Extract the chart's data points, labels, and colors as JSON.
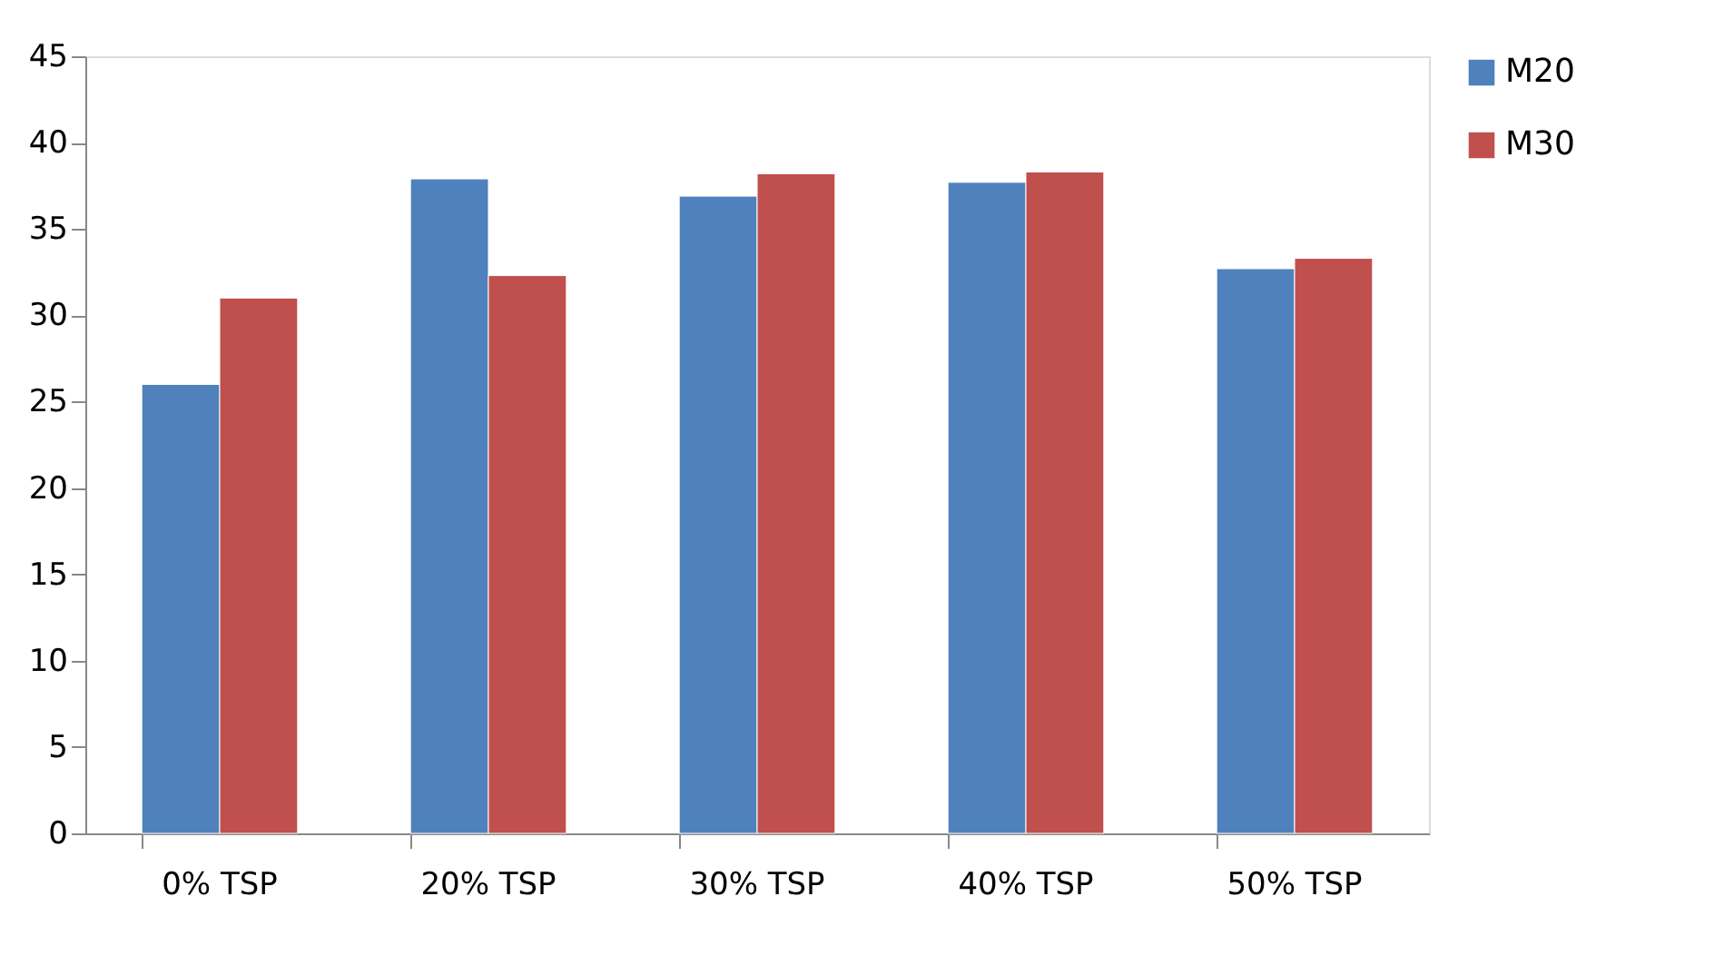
{
  "chart_data": {
    "type": "bar",
    "categories": [
      "0% TSP",
      "20% TSP",
      "30% TSP",
      "40% TSP",
      "50% TSP"
    ],
    "series": [
      {
        "name": "M20",
        "color": "#4f81bd",
        "values": [
          26,
          37.9,
          36.9,
          37.7,
          32.7
        ]
      },
      {
        "name": "M30",
        "color": "#c0504d",
        "values": [
          31,
          32.3,
          38.2,
          38.3,
          33.3
        ]
      }
    ],
    "ylim": [
      0,
      45
    ],
    "yticks": [
      0,
      5,
      10,
      15,
      20,
      25,
      30,
      35,
      40,
      45
    ],
    "grid": false,
    "legend": "right"
  }
}
